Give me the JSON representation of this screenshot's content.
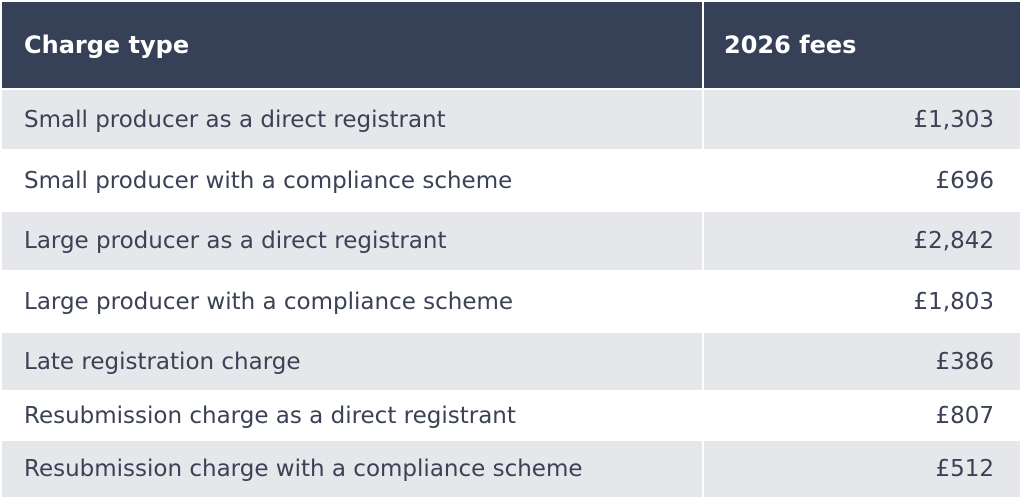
{
  "table": {
    "header": [
      "Charge type",
      "2026 fees"
    ],
    "rows": [
      [
        "Small producer as a direct registrant",
        "£1,303"
      ],
      [
        "Small producer with a compliance scheme",
        "£696"
      ],
      [
        "Large producer as a direct registrant",
        "£2,842"
      ],
      [
        "Large producer with a compliance scheme",
        "£1,803"
      ],
      [
        "Late registration charge",
        "£386"
      ],
      [
        "Resubmission charge as a direct registrant",
        "£807"
      ],
      [
        "Resubmission charge with a compliance scheme",
        "£512"
      ]
    ]
  }
}
